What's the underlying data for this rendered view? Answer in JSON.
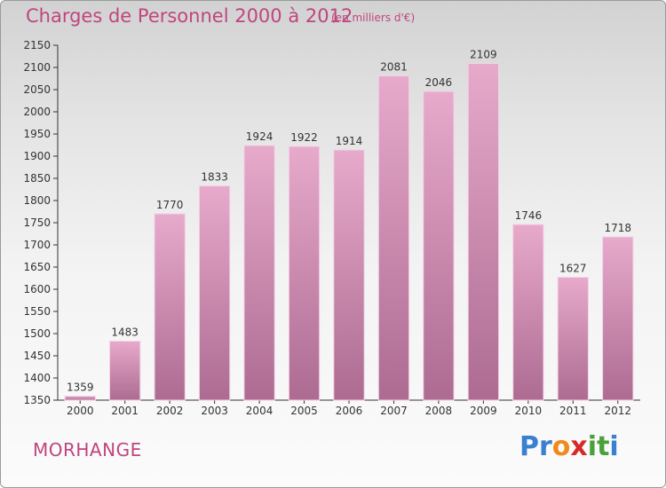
{
  "title": "Charges de Personnel 2000 à 2012",
  "subtitle": "(en milliers d'€)",
  "commune": "MORHANGE",
  "brand": {
    "letters": [
      "P",
      "r",
      "o",
      "x",
      "i",
      "t",
      "i"
    ],
    "colors": [
      "#3a7fd0",
      "#3a7fd0",
      "#f08a1c",
      "#d62a2a",
      "#4aa03a",
      "#4aa03a",
      "#3a7fd0"
    ]
  },
  "colors": {
    "accent": "#c0457f",
    "bar_top": "#e7aacb",
    "bar_bottom": "#ad6b92",
    "axis": "#333333"
  },
  "chart_data": {
    "type": "bar",
    "categories": [
      "2000",
      "2001",
      "2002",
      "2003",
      "2004",
      "2005",
      "2006",
      "2007",
      "2008",
      "2009",
      "2010",
      "2011",
      "2012"
    ],
    "values": [
      1359,
      1483,
      1770,
      1833,
      1924,
      1922,
      1914,
      2081,
      2046,
      2109,
      1746,
      1627,
      1718
    ],
    "ylim": [
      1350,
      2150
    ],
    "yticks": [
      1350,
      1400,
      1450,
      1500,
      1550,
      1600,
      1650,
      1700,
      1750,
      1800,
      1850,
      1900,
      1950,
      2000,
      2050,
      2100,
      2150
    ],
    "grid": false,
    "data_labels": true
  }
}
